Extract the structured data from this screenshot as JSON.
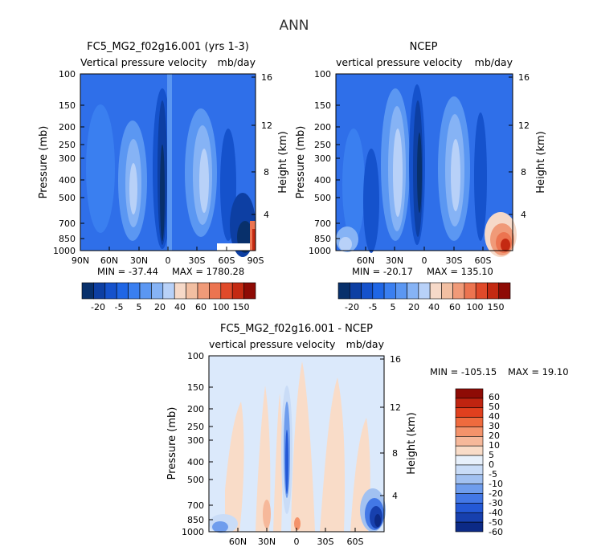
{
  "figure": {
    "title": "ANN"
  },
  "chart_data": [
    {
      "type": "heatmap",
      "title": "FC5_MG2_f02g16.001 (yrs 1-3)",
      "subtitle_left": "Vertical pressure velocity",
      "subtitle_right": "mb/day",
      "xlabel": "",
      "ylabel": "Pressure (mb)",
      "ylabel_right": "Height (km)",
      "x_ticks": [
        "90N",
        "60N",
        "30N",
        "0",
        "30S",
        "60S",
        "90S"
      ],
      "y_ticks": [
        "100",
        "150",
        "200",
        "250",
        "300",
        "400",
        "500",
        "700",
        "850",
        "1000"
      ],
      "y_ticks_right": [
        "16",
        "12",
        "8",
        "4"
      ],
      "x_range": [
        90,
        -90
      ],
      "y_range": [
        1000,
        100
      ],
      "y_scale": "log",
      "min_label": "MIN = -37.44",
      "max_label": "MAX = 1780.28",
      "colorbar_labels": [
        "-20",
        "-5",
        "5",
        "20",
        "40",
        "60",
        "100",
        "150"
      ]
    },
    {
      "type": "heatmap",
      "title": "NCEP",
      "subtitle_left": "vertical pressure velocity",
      "subtitle_right": "mb/day",
      "xlabel": "",
      "ylabel": "Pressure (mb)",
      "ylabel_right": "Height (km)",
      "x_ticks": [
        "60N",
        "30N",
        "0",
        "30S",
        "60S"
      ],
      "y_ticks": [
        "100",
        "150",
        "200",
        "250",
        "300",
        "400",
        "500",
        "700",
        "850",
        "1000"
      ],
      "y_ticks_right": [
        "16",
        "12",
        "8",
        "4"
      ],
      "x_range": [
        90,
        -90
      ],
      "y_range": [
        1000,
        100
      ],
      "y_scale": "log",
      "min_label": "MIN = -20.17",
      "max_label": "MAX = 135.10",
      "colorbar_labels": [
        "-20",
        "-5",
        "5",
        "20",
        "40",
        "60",
        "100",
        "150"
      ]
    },
    {
      "type": "heatmap",
      "title": "FC5_MG2_f02g16.001 - NCEP",
      "subtitle_left": "vertical pressure velocity",
      "subtitle_right": "mb/day",
      "xlabel": "",
      "ylabel": "Pressure (mb)",
      "ylabel_right": "Height (km)",
      "x_ticks": [
        "60N",
        "30N",
        "0",
        "30S",
        "60S"
      ],
      "y_ticks": [
        "100",
        "150",
        "200",
        "250",
        "300",
        "400",
        "500",
        "700",
        "850",
        "1000"
      ],
      "y_ticks_right": [
        "16",
        "12",
        "8",
        "4"
      ],
      "x_range": [
        90,
        -90
      ],
      "y_range": [
        1000,
        100
      ],
      "y_scale": "log",
      "min_label": "MIN = -105.15",
      "max_label": "MAX =  19.10",
      "colorbar_labels": [
        "60",
        "50",
        "40",
        "30",
        "20",
        "10",
        "5",
        "0",
        "-5",
        "-10",
        "-20",
        "-30",
        "-40",
        "-50",
        "-60"
      ]
    }
  ],
  "colors": {
    "seq_palette": [
      "#08306b",
      "#0d3fa3",
      "#1552cc",
      "#1f66e5",
      "#3a7ff0",
      "#5b97f2",
      "#86b3f5",
      "#b8d1f8",
      "#f6d9c8",
      "#f2bfa2",
      "#f09a78",
      "#ec7450",
      "#e04a2a",
      "#c42a12",
      "#8e0b05"
    ],
    "diff_palette": [
      "#8e0b05",
      "#bf2410",
      "#e0401e",
      "#ef6b3e",
      "#f4936b",
      "#f6b89a",
      "#f9dcc8",
      "#e7f0fb",
      "#c9dcf7",
      "#a2c1f1",
      "#6f9ded",
      "#4378e6",
      "#2459d6",
      "#1740ae",
      "#0c2a86"
    ],
    "field_blue": "#2f6fe9",
    "field_light": "#dbe9fb"
  }
}
